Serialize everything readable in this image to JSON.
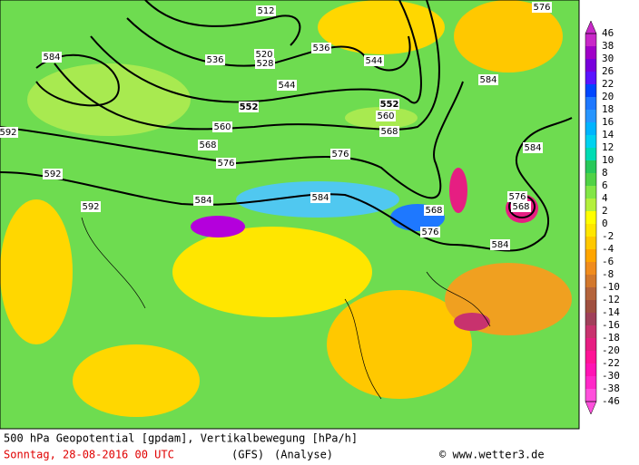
{
  "map": {
    "contour_labels": [
      "512",
      "520",
      "528",
      "536",
      "536",
      "544",
      "544",
      "552",
      "552",
      "560",
      "560",
      "568",
      "568",
      "568",
      "576",
      "576",
      "576",
      "576",
      "584",
      "584",
      "584",
      "584",
      "584",
      "584",
      "592",
      "592",
      "592",
      "576",
      "568"
    ],
    "colorbar": {
      "labels": [
        46,
        38,
        30,
        26,
        22,
        20,
        18,
        16,
        14,
        12,
        10,
        8,
        6,
        4,
        2,
        0,
        -2,
        -4,
        -6,
        -8,
        -10,
        -12,
        -14,
        -16,
        -18,
        -20,
        -22,
        -30,
        -38,
        -46
      ],
      "colors": [
        "#c828c8",
        "#a000c8",
        "#7800dc",
        "#5a14ff",
        "#0046ff",
        "#1e78ff",
        "#2896ff",
        "#00b4ff",
        "#00d2f0",
        "#00dcb4",
        "#28c85a",
        "#50d246",
        "#82e646",
        "#b4f03c",
        "#ffff00",
        "#ffe600",
        "#ffc800",
        "#ffa500",
        "#f08c1e",
        "#d2782d",
        "#b4643c",
        "#a05040",
        "#a0405a",
        "#c8326e",
        "#e61e82",
        "#ff1496",
        "#ff14b4",
        "#ff28c8",
        "#ff50dc"
      ]
    },
    "footer": {
      "line1": "500 hPa Geopotential [gpdam], Vertikalbewegung [hPa/h]",
      "date": "Sonntag, 28-08-2016  00 UTC",
      "model": "(GFS)",
      "run": "(Analyse)",
      "credit": "© www.wetter3.de"
    }
  }
}
